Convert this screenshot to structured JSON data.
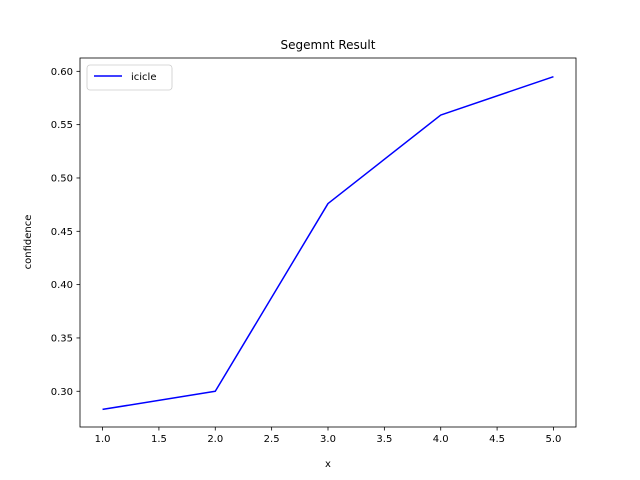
{
  "chart_data": {
    "type": "line",
    "title": "Segemnt Result",
    "xlabel": "x",
    "ylabel": "confidence",
    "xlim": [
      0.8,
      5.2
    ],
    "ylim": [
      0.2665,
      0.6125
    ],
    "x_ticks": [
      1.0,
      1.5,
      2.0,
      2.5,
      3.0,
      3.5,
      4.0,
      4.5,
      5.0
    ],
    "x_tick_labels": [
      "1.0",
      "1.5",
      "2.0",
      "2.5",
      "3.0",
      "3.5",
      "4.0",
      "4.5",
      "5.0"
    ],
    "y_ticks": [
      0.3,
      0.35,
      0.4,
      0.45,
      0.5,
      0.55,
      0.6
    ],
    "y_tick_labels": [
      "0.30",
      "0.35",
      "0.40",
      "0.45",
      "0.50",
      "0.55",
      "0.60"
    ],
    "grid": false,
    "legend_position": "top-left",
    "series": [
      {
        "name": "icicle",
        "color": "#0000ff",
        "x": [
          1,
          2,
          3,
          4,
          5
        ],
        "y": [
          0.283,
          0.3,
          0.476,
          0.559,
          0.595
        ]
      }
    ]
  }
}
